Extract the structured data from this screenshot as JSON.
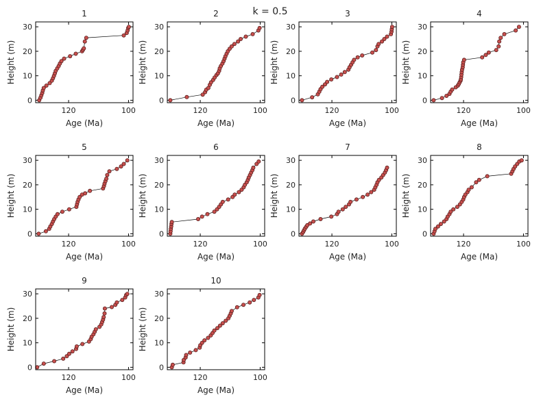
{
  "figure_title": "k = 0.5",
  "chart_data": [
    {
      "type": "scatter",
      "title": "1",
      "xlabel": "Age (Ma)",
      "ylabel": "Height (m)",
      "xlim": [
        131,
        98.5
      ],
      "ylim": [
        -1,
        32
      ],
      "xticks": [
        120,
        100
      ],
      "yticks": [
        0,
        10,
        20,
        30
      ],
      "series": [
        {
          "x": [
            129.8,
            129.4,
            129.1,
            128.8,
            128.6,
            128.3,
            127.4,
            126.3,
            125.6,
            125.2,
            124.9,
            124.6,
            124.3,
            123.8,
            123.3,
            122.9,
            122.4,
            121.5,
            119.5,
            117.6,
            115.5,
            115.2,
            114.9,
            114.6,
            114.1,
            101.6,
            100.6,
            100.3,
            100.1,
            99.9
          ],
          "y": [
            0,
            1,
            2,
            3,
            4,
            5,
            6,
            7,
            8,
            9,
            10,
            11,
            12,
            13,
            14,
            15,
            16,
            17,
            18,
            19,
            20,
            20.6,
            21.2,
            24,
            25.5,
            26.5,
            27.5,
            28.5,
            29.5,
            30
          ]
        }
      ]
    },
    {
      "type": "scatter",
      "title": "2",
      "xlabel": "Age (Ma)",
      "ylabel": "Height (m)",
      "xlim": [
        131,
        98.5
      ],
      "ylim": [
        -1,
        32
      ],
      "xticks": [
        120,
        100
      ],
      "yticks": [
        0,
        10,
        20,
        30
      ],
      "series": [
        {
          "x": [
            130,
            124.5,
            119.2,
            118.4,
            118,
            117.3,
            116.8,
            116.4,
            115.7,
            115.2,
            114.6,
            114.1,
            113.7,
            113.5,
            113.1,
            112.6,
            112.2,
            111.9,
            111.6,
            111.2,
            110.8,
            110.2,
            109.5,
            108.6,
            107.4,
            106.5,
            104.8,
            102.5,
            100.6,
            100.2
          ],
          "y": [
            0,
            1.3,
            2.3,
            3.3,
            4.3,
            5,
            6.3,
            7.3,
            8.3,
            9.3,
            10.3,
            11,
            12,
            13,
            14,
            15,
            16,
            17,
            18,
            19,
            20,
            21,
            22,
            23,
            24,
            25,
            26,
            27,
            28.5,
            29.5
          ]
        }
      ]
    },
    {
      "type": "scatter",
      "title": "3",
      "xlabel": "Age (Ma)",
      "ylabel": "Height (m)",
      "xlim": [
        131,
        98.5
      ],
      "ylim": [
        -1,
        32
      ],
      "xticks": [
        120,
        100
      ],
      "yticks": [
        0,
        10,
        20,
        30
      ],
      "series": [
        {
          "x": [
            130,
            126.6,
            124.7,
            124.2,
            123.8,
            123.2,
            122.3,
            121.6,
            120.2,
            118.3,
            116.9,
            115.7,
            114.5,
            114.1,
            113.6,
            113.1,
            112.6,
            111.4,
            109.9,
            106.5,
            105.3,
            104.8,
            104.4,
            103.3,
            102.5,
            101.6,
            100.3,
            100.1,
            100,
            99.9
          ],
          "y": [
            0,
            1.2,
            2.4,
            3.5,
            4.5,
            5.5,
            6.5,
            7.5,
            8.5,
            9.5,
            10.5,
            11.5,
            12.5,
            13.5,
            14.5,
            15.5,
            16.5,
            17.5,
            18.3,
            19.5,
            20.5,
            22,
            23,
            24,
            25,
            26,
            27,
            28,
            29,
            30
          ]
        }
      ]
    },
    {
      "type": "scatter",
      "title": "4",
      "xlabel": "Age (Ma)",
      "ylabel": "Height (m)",
      "xlim": [
        131,
        98.5
      ],
      "ylim": [
        -1,
        32
      ],
      "xticks": [
        120,
        100
      ],
      "yticks": [
        0,
        10,
        20,
        30
      ],
      "series": [
        {
          "x": [
            130,
            127.2,
            125.7,
            124.7,
            124.3,
            123.8,
            122.6,
            121.9,
            121.6,
            121.3,
            121,
            120.9,
            120.8,
            120.7,
            120.6,
            120.5,
            120.3,
            120.2,
            120.1,
            119.8,
            113.8,
            112.6,
            111.6,
            109.1,
            108.3,
            108.1,
            107.6,
            106.4,
            102.6,
            101.5
          ],
          "y": [
            0,
            0.9,
            1.8,
            2.6,
            3.5,
            4.4,
            5.3,
            6,
            6.6,
            7.3,
            8,
            8.5,
            9.5,
            10.5,
            11.5,
            12.5,
            13.5,
            14.5,
            15.5,
            16.5,
            17.5,
            18.5,
            19.5,
            20.5,
            22,
            24,
            25.5,
            27,
            28.5,
            30
          ]
        }
      ]
    },
    {
      "type": "scatter",
      "title": "5",
      "xlabel": "Age (Ma)",
      "ylabel": "Height (m)",
      "xlim": [
        131,
        98.5
      ],
      "ylim": [
        -1,
        32
      ],
      "xticks": [
        120,
        100
      ],
      "yticks": [
        0,
        10,
        20,
        30
      ],
      "series": [
        {
          "x": [
            130,
            127.6,
            126.5,
            126.1,
            125.6,
            125.2,
            124.8,
            124.3,
            123.7,
            122.1,
            119.8,
            117.4,
            117.2,
            117,
            116.7,
            116.3,
            115.5,
            114.5,
            112.9,
            108.5,
            108.2,
            108,
            107.7,
            107.4,
            107.1,
            106.4,
            103.9,
            102.5,
            101.6,
            100.4
          ],
          "y": [
            0,
            1,
            2,
            3,
            4,
            5,
            6,
            7,
            8,
            9,
            10,
            11,
            12,
            13,
            14,
            15,
            16,
            16.5,
            17.5,
            18.5,
            19.5,
            20.5,
            21.5,
            22.5,
            24,
            25.5,
            26.5,
            27.5,
            28.5,
            30
          ]
        }
      ]
    },
    {
      "type": "scatter",
      "title": "6",
      "xlabel": "Age (Ma)",
      "ylabel": "Height (m)",
      "xlim": [
        131,
        98.5
      ],
      "ylim": [
        -1,
        32
      ],
      "xticks": [
        120,
        100
      ],
      "yticks": [
        0,
        10,
        20,
        30
      ],
      "series": [
        {
          "x": [
            130,
            129.9,
            129.8,
            129.7,
            129.6,
            129.5,
            120.7,
            119.4,
            117.6,
            115.3,
            114.4,
            113.7,
            113.1,
            112.5,
            110.7,
            109.2,
            108.5,
            107.1,
            106.2,
            105.5,
            105.1,
            104.5,
            104.1,
            103.8,
            103.4,
            103,
            102.6,
            102.3,
            101.2,
            100.5
          ],
          "y": [
            0,
            1,
            2,
            3,
            4,
            4.8,
            6,
            7,
            8,
            9,
            10,
            11,
            12,
            13,
            14,
            15,
            16,
            17,
            18,
            19,
            20,
            21,
            22,
            23,
            24,
            25,
            26,
            27,
            28.5,
            29.5
          ]
        }
      ]
    },
    {
      "type": "scatter",
      "title": "7",
      "xlabel": "Age (Ma)",
      "ylabel": "Height (m)",
      "xlim": [
        131,
        98.5
      ],
      "ylim": [
        -1,
        32
      ],
      "xticks": [
        120,
        100
      ],
      "yticks": [
        0,
        10,
        20,
        30
      ],
      "series": [
        {
          "x": [
            130,
            129.6,
            129.3,
            129,
            128.6,
            128.2,
            127.3,
            126.2,
            123.8,
            120.2,
            118.3,
            117.8,
            116.4,
            115.4,
            114.3,
            113.8,
            111.8,
            109.7,
            108.1,
            106.9,
            105.9,
            105.5,
            105.1,
            104.8,
            104.3,
            103.5,
            102.9,
            102.3,
            101.9,
            101.6
          ],
          "y": [
            0,
            0.7,
            1.4,
            2.1,
            2.8,
            3.5,
            4.2,
            5,
            6,
            7,
            8,
            9,
            10,
            11,
            12,
            13,
            14,
            15,
            16,
            17,
            18,
            19,
            20,
            21,
            22,
            23,
            24,
            25,
            26,
            27
          ]
        }
      ]
    },
    {
      "type": "scatter",
      "title": "8",
      "xlabel": "Age (Ma)",
      "ylabel": "Height (m)",
      "xlim": [
        131,
        98.5
      ],
      "ylim": [
        -1,
        32
      ],
      "xticks": [
        120,
        100
      ],
      "yticks": [
        0,
        10,
        20,
        30
      ],
      "series": [
        {
          "x": [
            130,
            129.7,
            129.4,
            128.5,
            127.6,
            126.5,
            125.7,
            125.3,
            124.7,
            124.3,
            123.4,
            122.1,
            121.2,
            120.6,
            120.1,
            119.8,
            119.4,
            118.7,
            118.3,
            117.3,
            115.8,
            114.8,
            112.1,
            104.1,
            103.7,
            103.3,
            102.8,
            102.1,
            101.4,
            100.6
          ],
          "y": [
            0,
            1,
            2,
            3,
            4,
            5,
            6,
            7,
            8,
            9,
            10,
            11,
            12,
            13,
            14,
            15,
            16,
            17,
            18,
            19,
            21,
            22,
            23.5,
            24.5,
            25.5,
            26.5,
            27.5,
            28.5,
            29.5,
            30
          ]
        }
      ]
    },
    {
      "type": "scatter",
      "title": "9",
      "xlabel": "Age (Ma)",
      "ylabel": "Height (m)",
      "xlim": [
        131,
        98.5
      ],
      "ylim": [
        -1,
        32
      ],
      "xticks": [
        120,
        100
      ],
      "yticks": [
        0,
        10,
        20,
        30
      ],
      "series": [
        {
          "x": [
            130.5,
            128.3,
            124.8,
            121.8,
            120.6,
            119.8,
            118.7,
            117.5,
            117.3,
            115.4,
            113.2,
            112.6,
            112.3,
            111.7,
            111.3,
            110.9,
            109.7,
            109.1,
            108.8,
            108.5,
            108.3,
            108,
            107.9,
            105.6,
            104.4,
            103.9,
            102.1,
            101.1,
            100.8,
            100.4
          ],
          "y": [
            0,
            1.5,
            2.5,
            3.5,
            4.5,
            5.5,
            6.5,
            7.5,
            8.5,
            9.5,
            10.5,
            11.5,
            12.5,
            13.5,
            14.5,
            15.5,
            16.5,
            17.5,
            18.5,
            19.5,
            20.5,
            22,
            24,
            24.6,
            25.5,
            26.5,
            27.5,
            28.5,
            29.5,
            30
          ]
        }
      ]
    },
    {
      "type": "scatter",
      "title": "10",
      "xlabel": "Age (Ma)",
      "ylabel": "Height (m)",
      "xlim": [
        131,
        98.5
      ],
      "ylim": [
        -1,
        32
      ],
      "xticks": [
        120,
        100
      ],
      "yticks": [
        0,
        10,
        20,
        30
      ],
      "series": [
        {
          "x": [
            129.5,
            129.2,
            125.6,
            125.5,
            124.9,
            124.7,
            123.4,
            121.5,
            120.2,
            120,
            119.4,
            118.6,
            117.4,
            116.5,
            115.9,
            115.3,
            114.3,
            113.4,
            112.5,
            111.5,
            110.6,
            110.2,
            109.8,
            109.5,
            107.7,
            105.6,
            103.5,
            102.1,
            100.6,
            100.2
          ],
          "y": [
            0,
            1,
            2,
            3,
            4,
            5,
            6,
            7,
            8,
            9,
            10,
            11,
            12,
            13,
            14,
            15,
            16,
            17,
            18,
            19,
            20,
            21,
            22,
            23,
            24.5,
            25.5,
            26.5,
            27.5,
            28.5,
            29.5
          ]
        }
      ]
    }
  ]
}
